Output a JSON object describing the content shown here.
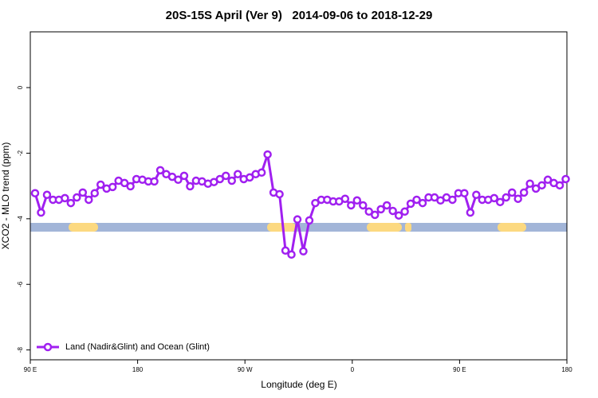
{
  "chart_data": {
    "type": "line",
    "title": "20S-15S April (Ver 9)   2014-09-06 to 2018-12-29",
    "xlabel": "Longitude (deg E)",
    "ylabel": "XCO2 - MLO trend (ppm)",
    "x": [
      94,
      99,
      104,
      109,
      114,
      119,
      124,
      129,
      134,
      139,
      144,
      149,
      154,
      159,
      164,
      169,
      174,
      179,
      184,
      189,
      194,
      199,
      204,
      209,
      214,
      219,
      224,
      229,
      234,
      239,
      244,
      249,
      254,
      259,
      264,
      269,
      274,
      279,
      284,
      289,
      294,
      299,
      304,
      309,
      314,
      319,
      324,
      329,
      334,
      339,
      344,
      349,
      354,
      359,
      364,
      369,
      374,
      379,
      384,
      389,
      394,
      399,
      404,
      409,
      414,
      419,
      424,
      429,
      434,
      439,
      444,
      449,
      454,
      459,
      464,
      469,
      474,
      479,
      484,
      489,
      494,
      499,
      504,
      509,
      514,
      519,
      524,
      529,
      534,
      539
    ],
    "series": [
      {
        "name": "Land (Nadir&Glint) and Ocean (Glint)",
        "color": "#a020f0",
        "values": [
          -3.22,
          -3.81,
          -3.27,
          -3.42,
          -3.42,
          -3.37,
          -3.52,
          -3.35,
          -3.2,
          -3.42,
          -3.22,
          -2.96,
          -3.08,
          -3.03,
          -2.84,
          -2.91,
          -3.01,
          -2.79,
          -2.81,
          -2.86,
          -2.86,
          -2.52,
          -2.64,
          -2.72,
          -2.81,
          -2.69,
          -3.01,
          -2.84,
          -2.86,
          -2.93,
          -2.88,
          -2.79,
          -2.69,
          -2.84,
          -2.64,
          -2.79,
          -2.74,
          -2.64,
          -2.59,
          -2.04,
          -3.2,
          -3.25,
          -4.97,
          -5.09,
          -4.02,
          -4.99,
          -4.05,
          -3.52,
          -3.42,
          -3.42,
          -3.47,
          -3.47,
          -3.39,
          -3.59,
          -3.44,
          -3.59,
          -3.78,
          -3.88,
          -3.71,
          -3.59,
          -3.76,
          -3.9,
          -3.78,
          -3.54,
          -3.42,
          -3.52,
          -3.35,
          -3.35,
          -3.44,
          -3.35,
          -3.42,
          -3.22,
          -3.22,
          -3.81,
          -3.27,
          -3.42,
          -3.42,
          -3.37,
          -3.49,
          -3.35,
          -3.2,
          -3.39,
          -3.2,
          -2.93,
          -3.08,
          -2.98,
          -2.81,
          -2.91,
          -2.98,
          -2.79
        ]
      }
    ],
    "xlim": [
      90,
      540
    ],
    "xticks": [
      {
        "value": 90,
        "label": "90 E"
      },
      180,
      {
        "value": 270,
        "label": "90 W"
      },
      {
        "value": 360,
        "label": "0"
      },
      {
        "value": 450,
        "label": "90 E"
      },
      {
        "value": 540,
        "label": "180"
      }
    ],
    "ylim": [
      -8.3,
      1.7
    ],
    "yticks": [
      0,
      -2,
      -4,
      -6,
      -8
    ],
    "legend": "bottom left"
  }
}
